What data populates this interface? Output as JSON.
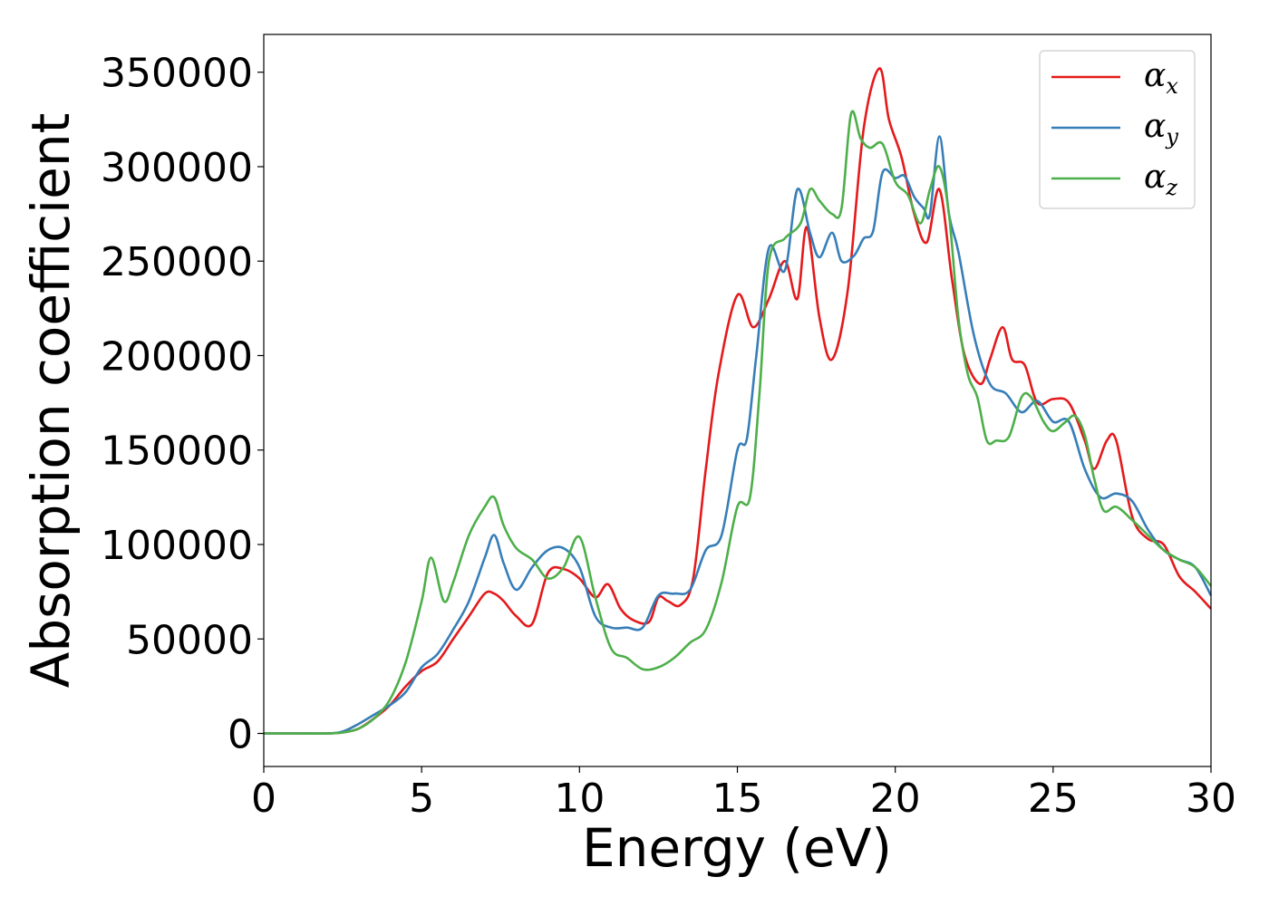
{
  "chart_data": {
    "type": "line",
    "xlabel": "Energy (eV)",
    "ylabel": "Absorption coefficient",
    "xlim": [
      0,
      30
    ],
    "ylim": [
      -17500,
      370000
    ],
    "xticks": [
      0,
      5,
      10,
      15,
      20,
      25,
      30
    ],
    "xtick_labels": [
      "0",
      "5",
      "10",
      "15",
      "20",
      "25",
      "30"
    ],
    "yticks": [
      0,
      50000,
      100000,
      150000,
      200000,
      250000,
      300000,
      350000
    ],
    "ytick_labels": [
      "0",
      "50000",
      "100000",
      "150000",
      "200000",
      "250000",
      "300000",
      "350000"
    ],
    "grid": false,
    "legend_position": "top-right",
    "series": [
      {
        "name": "αx",
        "symbol": "α",
        "subscript": "x",
        "color": "#e41a1c",
        "x": [
          0,
          1,
          2,
          2.5,
          3,
          3.5,
          4,
          4.5,
          5,
          5.5,
          6,
          6.5,
          7,
          7.3,
          7.6,
          8,
          8.5,
          9,
          9.5,
          10,
          10.5,
          10.9,
          11.3,
          11.7,
          12.2,
          12.5,
          12.8,
          13.2,
          13.6,
          14,
          14.4,
          15,
          15.5,
          16,
          16.5,
          16.9,
          17.2,
          17.6,
          18,
          18.5,
          19,
          19.5,
          19.8,
          20.2,
          20.6,
          21,
          21.4,
          21.8,
          22.2,
          22.7,
          23,
          23.4,
          23.7,
          24.1,
          24.5,
          25,
          25.5,
          26,
          26.3,
          26.7,
          27,
          27.5,
          28,
          28.5,
          29,
          29.5,
          30
        ],
        "y": [
          0,
          0,
          0,
          500,
          2500,
          8000,
          15000,
          25000,
          33000,
          38000,
          50000,
          62000,
          74000,
          74000,
          70000,
          62000,
          58000,
          85000,
          87000,
          82000,
          72000,
          79000,
          66000,
          60000,
          59000,
          72000,
          70000,
          68000,
          82000,
          140000,
          190000,
          232000,
          215000,
          230000,
          250000,
          230000,
          268000,
          220000,
          198000,
          235000,
          320000,
          352000,
          325000,
          305000,
          275000,
          260000,
          288000,
          240000,
          200000,
          185000,
          198000,
          215000,
          198000,
          195000,
          175000,
          177000,
          175000,
          155000,
          140000,
          155000,
          155000,
          115000,
          103000,
          100000,
          83000,
          75000,
          66000
        ]
      },
      {
        "name": "αy",
        "symbol": "α",
        "subscript": "y",
        "color": "#377eb8",
        "x": [
          0,
          1,
          2,
          2.5,
          3,
          3.5,
          4,
          4.5,
          5,
          5.5,
          6,
          6.5,
          7,
          7.3,
          7.6,
          8,
          8.5,
          9,
          9.5,
          10,
          10.5,
          11,
          11.5,
          12,
          12.5,
          13,
          13.5,
          14,
          14.5,
          15,
          15.3,
          15.6,
          16,
          16.5,
          16.9,
          17.3,
          17.6,
          18,
          18.3,
          18.7,
          19,
          19.3,
          19.6,
          20,
          20.3,
          20.6,
          20.9,
          21.1,
          21.4,
          21.7,
          22,
          22.5,
          23,
          23.5,
          24,
          24.5,
          25,
          25.5,
          26,
          26.5,
          27,
          27.5,
          28,
          28.5,
          29,
          29.5,
          30
        ],
        "y": [
          0,
          0,
          0,
          1000,
          5000,
          10000,
          15000,
          22000,
          35000,
          42000,
          55000,
          70000,
          93000,
          105000,
          90000,
          76000,
          88000,
          97000,
          98000,
          88000,
          62000,
          56000,
          56000,
          56000,
          73000,
          74000,
          76000,
          97000,
          105000,
          150000,
          156000,
          200000,
          257000,
          245000,
          288000,
          265000,
          252000,
          265000,
          250000,
          253000,
          262000,
          266000,
          297000,
          294000,
          295000,
          284000,
          278000,
          275000,
          316000,
          275000,
          255000,
          210000,
          185000,
          180000,
          170000,
          176000,
          165000,
          165000,
          140000,
          125000,
          127000,
          123000,
          108000,
          97000,
          92000,
          88000,
          73000
        ]
      },
      {
        "name": "αz",
        "symbol": "α",
        "subscript": "z",
        "color": "#4daf4a",
        "x": [
          0,
          1,
          2,
          2.5,
          3,
          3.5,
          4,
          4.5,
          5,
          5.3,
          5.7,
          6,
          6.5,
          7,
          7.3,
          7.6,
          8,
          8.5,
          9,
          9.5,
          10,
          10.5,
          11,
          11.5,
          12,
          12.5,
          13,
          13.5,
          14,
          14.5,
          15,
          15.4,
          15.7,
          16,
          16.5,
          17,
          17.3,
          17.6,
          18,
          18.3,
          18.6,
          18.9,
          19.2,
          19.6,
          20,
          20.4,
          20.8,
          21.1,
          21.4,
          21.7,
          22,
          22.3,
          22.6,
          22.9,
          23.2,
          23.6,
          24,
          24.3,
          24.7,
          25,
          25.4,
          25.7,
          26,
          26.3,
          26.6,
          27,
          27.5,
          28,
          28.5,
          29,
          29.5,
          30
        ],
        "y": [
          0,
          0,
          0,
          500,
          2500,
          8000,
          18000,
          38000,
          70000,
          93000,
          70000,
          80000,
          105000,
          120000,
          125000,
          110000,
          98000,
          92000,
          82000,
          88000,
          104000,
          72000,
          45000,
          40000,
          34000,
          35000,
          40000,
          48000,
          55000,
          80000,
          120000,
          125000,
          180000,
          250000,
          262000,
          270000,
          288000,
          282000,
          275000,
          278000,
          328000,
          315000,
          310000,
          312000,
          292000,
          285000,
          270000,
          288000,
          300000,
          275000,
          220000,
          190000,
          178000,
          155000,
          155000,
          157000,
          178000,
          178000,
          165000,
          160000,
          165000,
          168000,
          158000,
          135000,
          118000,
          120000,
          113000,
          105000,
          97000,
          92000,
          88000,
          78000
        ]
      }
    ]
  }
}
